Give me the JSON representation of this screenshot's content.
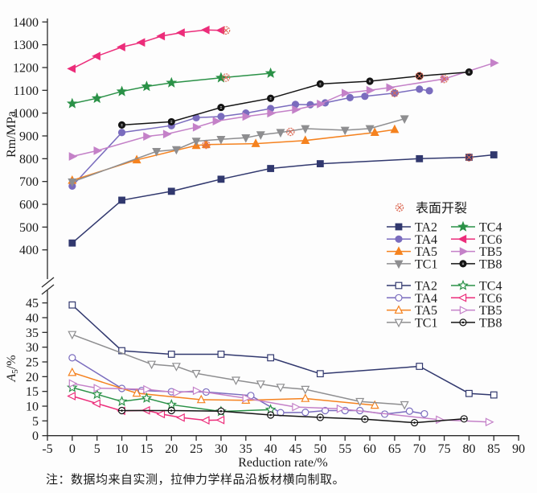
{
  "note": {
    "text": "注：数据均来自实测，拉伸力学样品沿板材横向制取。"
  },
  "chart_data": {
    "type": "line",
    "x_axis": {
      "label": "Reduction rate/%",
      "min": -5,
      "max": 90,
      "tick_step": 5
    },
    "crack_marker": {
      "label": "表面开裂",
      "color": "#dc6a55",
      "meaning": "surface cracking point"
    },
    "top_plot": {
      "y_label": "Rm/MPa",
      "y_min": 400,
      "y_max": 1400,
      "y_tick_step": 100,
      "series": [
        {
          "name": "TA2",
          "marker": "square",
          "color": "#31386e",
          "points": [
            [
              0,
              430
            ],
            [
              10,
              618
            ],
            [
              20,
              657
            ],
            [
              30,
              710
            ],
            [
              40,
              757
            ],
            [
              50,
              778
            ],
            [
              70,
              800
            ],
            [
              80,
              806
            ],
            [
              85,
              817
            ]
          ],
          "cracks": [
            [
              80,
              806
            ]
          ]
        },
        {
          "name": "TA4",
          "marker": "circle",
          "color": "#7a6cbe",
          "points": [
            [
              0,
              680
            ],
            [
              10,
              915
            ],
            [
              20,
              945
            ],
            [
              25,
              980
            ],
            [
              30,
              985
            ],
            [
              35,
              1000
            ],
            [
              40,
              1020
            ],
            [
              45,
              1038
            ],
            [
              48,
              1037
            ],
            [
              51,
              1045
            ],
            [
              56,
              1068
            ],
            [
              59,
              1074
            ],
            [
              65,
              1088
            ],
            [
              70,
              1105
            ],
            [
              72,
              1098
            ]
          ],
          "cracks": [
            [
              65,
              1088
            ]
          ]
        },
        {
          "name": "TA5",
          "marker": "triangle-up",
          "color": "#f5821f",
          "points": [
            [
              0,
              705
            ],
            [
              13,
              795
            ],
            [
              25,
              858
            ],
            [
              27,
              862
            ],
            [
              37,
              866
            ],
            [
              47,
              880
            ],
            [
              61,
              915
            ],
            [
              65,
              928
            ]
          ],
          "cracks": [
            [
              27,
              861
            ]
          ]
        },
        {
          "name": "TC1",
          "marker": "triangle-down",
          "color": "#8e8e90",
          "points": [
            [
              0,
              698
            ],
            [
              17,
              832
            ],
            [
              21,
              840
            ],
            [
              25,
              877
            ],
            [
              30,
              885
            ],
            [
              35,
              892
            ],
            [
              38,
              905
            ],
            [
              42,
              915
            ],
            [
              47,
              932
            ],
            [
              55,
              925
            ],
            [
              60,
              932
            ],
            [
              67,
              975
            ]
          ],
          "cracks": [
            [
              44,
              918
            ]
          ]
        },
        {
          "name": "TC4",
          "marker": "star",
          "color": "#2a9147",
          "points": [
            [
              0,
              1042
            ],
            [
              5,
              1065
            ],
            [
              10,
              1095
            ],
            [
              15,
              1117
            ],
            [
              20,
              1133
            ],
            [
              30,
              1155
            ],
            [
              40,
              1175
            ]
          ],
          "cracks": [
            [
              31,
              1156
            ]
          ]
        },
        {
          "name": "TC6",
          "marker": "triangle-left",
          "color": "#ec2d7a",
          "points": [
            [
              0,
              1195
            ],
            [
              5,
              1250
            ],
            [
              10,
              1290
            ],
            [
              14,
              1310
            ],
            [
              18,
              1338
            ],
            [
              22,
              1353
            ],
            [
              27,
              1365
            ],
            [
              30,
              1363
            ]
          ],
          "cracks": [
            [
              31,
              1363
            ]
          ]
        },
        {
          "name": "TB5",
          "marker": "triangle-right",
          "color": "#c481c8",
          "points": [
            [
              0,
              810
            ],
            [
              5,
              835
            ],
            [
              15,
              898
            ],
            [
              19,
              908
            ],
            [
              25,
              938
            ],
            [
              29,
              965
            ],
            [
              35,
              985
            ],
            [
              40,
              1000
            ],
            [
              45,
              1015
            ],
            [
              50,
              1040
            ],
            [
              55,
              1088
            ],
            [
              60,
              1100
            ],
            [
              64,
              1112
            ],
            [
              75,
              1150
            ],
            [
              85,
              1220
            ]
          ],
          "cracks": [
            [
              75,
              1150
            ]
          ]
        },
        {
          "name": "TB8",
          "marker": "circle-dot",
          "color": "#141414",
          "points": [
            [
              10,
              948
            ],
            [
              20,
              962
            ],
            [
              30,
              1025
            ],
            [
              40,
              1065
            ],
            [
              50,
              1128
            ],
            [
              60,
              1140
            ],
            [
              70,
              1163
            ],
            [
              80,
              1180
            ]
          ],
          "cracks": [
            [
              70,
              1163
            ]
          ]
        }
      ]
    },
    "bottom_plot": {
      "y_label": "A5/%",
      "y_label_parts": {
        "main": "A",
        "sub": "5",
        "rest": "/%"
      },
      "y_min": 0,
      "y_max": 45,
      "y_tick_step": 5,
      "series": [
        {
          "name": "TA2",
          "marker": "square",
          "color": "#31386e",
          "points": [
            [
              0,
              44.3
            ],
            [
              10,
              28.8
            ],
            [
              20,
              27.6
            ],
            [
              30,
              27.6
            ],
            [
              40,
              26.4
            ],
            [
              50,
              21
            ],
            [
              70,
              23.5
            ],
            [
              80,
              14.3
            ],
            [
              85,
              13.8
            ]
          ],
          "cracks": []
        },
        {
          "name": "TA4",
          "marker": "circle",
          "color": "#7a6cbe",
          "points": [
            [
              0,
              26.4
            ],
            [
              10,
              16
            ],
            [
              14,
              15.3
            ],
            [
              20,
              14.9
            ],
            [
              27,
              14.8
            ],
            [
              36,
              13.6
            ],
            [
              42,
              7.8
            ],
            [
              47,
              7.9
            ],
            [
              51,
              8.5
            ],
            [
              55,
              8.5
            ],
            [
              58,
              8.5
            ],
            [
              63,
              7.3
            ],
            [
              68,
              8.3
            ],
            [
              71,
              7.4
            ]
          ],
          "cracks": []
        },
        {
          "name": "TA5",
          "marker": "triangle-up",
          "color": "#f5821f",
          "points": [
            [
              0,
              21.4
            ],
            [
              13,
              14.4
            ],
            [
              26,
              12.2
            ],
            [
              35,
              12
            ],
            [
              47,
              12.6
            ],
            [
              61,
              10.3
            ]
          ],
          "cracks": []
        },
        {
          "name": "TC1",
          "marker": "triangle-down",
          "color": "#8e8e90",
          "points": [
            [
              0,
              34.3
            ],
            [
              16,
              24.2
            ],
            [
              21,
              23.5
            ],
            [
              25,
              21.1
            ],
            [
              33,
              18.8
            ],
            [
              38,
              17.5
            ],
            [
              42,
              16.4
            ],
            [
              47,
              15.7
            ],
            [
              58,
              11.6
            ],
            [
              67,
              10.5
            ]
          ],
          "cracks": []
        },
        {
          "name": "TC4",
          "marker": "star",
          "color": "#2a9147",
          "points": [
            [
              0,
              16.3
            ],
            [
              5,
              14
            ],
            [
              10,
              11.6
            ],
            [
              15,
              12.7
            ],
            [
              20,
              10.5
            ],
            [
              30,
              8.2
            ],
            [
              40,
              8.8
            ]
          ],
          "cracks": []
        },
        {
          "name": "TC6",
          "marker": "triangle-left",
          "color": "#ec2d7a",
          "points": [
            [
              0,
              13.4
            ],
            [
              5,
              10.9
            ],
            [
              10,
              8.4
            ],
            [
              15,
              8.6
            ],
            [
              18,
              7.3
            ],
            [
              22,
              6.1
            ],
            [
              27,
              5.2
            ],
            [
              30,
              5.3
            ]
          ],
          "cracks": []
        },
        {
          "name": "TB5",
          "marker": "triangle-right",
          "color": "#c481c8",
          "points": [
            [
              0,
              17.7
            ],
            [
              5,
              16.1
            ],
            [
              15,
              15.7
            ],
            [
              21,
              14.6
            ],
            [
              25,
              15.2
            ],
            [
              35,
              12.7
            ],
            [
              45,
              9.7
            ],
            [
              54,
              9.1
            ],
            [
              74,
              5.4
            ],
            [
              84,
              4.6
            ]
          ],
          "cracks": []
        },
        {
          "name": "TB8",
          "marker": "circle-dot",
          "color": "#141414",
          "points": [
            [
              10,
              8.5
            ],
            [
              20,
              8.5
            ],
            [
              30,
              8.3
            ],
            [
              40,
              7
            ],
            [
              50,
              6.2
            ],
            [
              59,
              5.6
            ],
            [
              69,
              4.4
            ],
            [
              79,
              5.7
            ]
          ],
          "cracks": []
        }
      ]
    },
    "legend": {
      "crack_label": "表面开裂",
      "filled_block_order": [
        "TA2",
        "TA4",
        "TA5",
        "TC1",
        "TC4",
        "TC6",
        "TB5",
        "TB8"
      ],
      "open_block_order": [
        "TA2",
        "TA4",
        "TA5",
        "TC1",
        "TC4",
        "TC6",
        "TB5",
        "TB8"
      ]
    }
  }
}
